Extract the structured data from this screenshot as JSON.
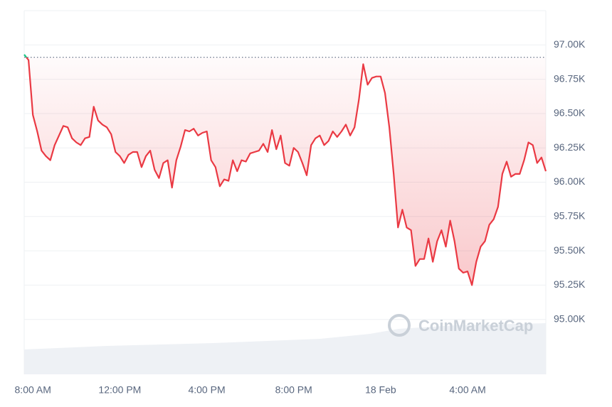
{
  "chart_data": {
    "type": "line",
    "x": [
      -0.4,
      -0.2,
      0,
      0.2,
      0.4,
      0.6,
      0.8,
      1,
      1.2,
      1.4,
      1.6,
      1.8,
      2,
      2.2,
      2.4,
      2.6,
      2.8,
      3,
      3.2,
      3.4,
      3.6,
      3.8,
      4,
      4.2,
      4.4,
      4.6,
      4.8,
      5,
      5.2,
      5.4,
      5.6,
      5.8,
      6,
      6.2,
      6.4,
      6.6,
      6.8,
      7,
      7.2,
      7.4,
      7.6,
      7.8,
      8,
      8.2,
      8.4,
      8.6,
      8.8,
      9,
      9.2,
      9.4,
      9.6,
      9.8,
      10,
      10.2,
      10.4,
      10.6,
      10.8,
      11,
      11.2,
      11.4,
      11.6,
      11.8,
      12,
      12.2,
      12.4,
      12.6,
      12.8,
      13,
      13.2,
      13.4,
      13.6,
      13.8,
      14,
      14.2,
      14.4,
      14.6,
      14.8,
      15,
      15.2,
      15.4,
      15.6,
      15.8,
      16,
      16.2,
      16.4,
      16.6,
      16.8,
      17,
      17.2,
      17.4,
      17.6,
      17.8,
      18,
      18.2,
      18.4,
      18.6,
      18.8,
      19,
      19.2,
      19.4,
      19.6,
      19.8,
      20,
      20.2,
      20.4,
      20.6,
      20.8,
      21,
      21.2,
      21.4,
      21.6,
      21.8,
      22,
      22.2,
      22.4,
      22.6,
      22.8,
      23,
      23.2,
      23.4,
      23.6
    ],
    "series": [
      {
        "color": "#ea3943",
        "up_color": "#16c784",
        "values": [
          96930,
          96890,
          96490,
          96370,
          96230,
          96190,
          96160,
          96270,
          96340,
          96410,
          96400,
          96320,
          96290,
          96270,
          96320,
          96330,
          96550,
          96450,
          96420,
          96400,
          96350,
          96220,
          96190,
          96140,
          96200,
          96220,
          96220,
          96110,
          96190,
          96230,
          96090,
          96030,
          96140,
          96160,
          95960,
          96160,
          96260,
          96380,
          96370,
          96390,
          96340,
          96360,
          96370,
          96160,
          96110,
          95970,
          96020,
          96010,
          96160,
          96080,
          96160,
          96150,
          96210,
          96220,
          96230,
          96280,
          96220,
          96380,
          96240,
          96340,
          96140,
          96120,
          96250,
          96220,
          96140,
          96050,
          96270,
          96320,
          96340,
          96270,
          96300,
          96370,
          96330,
          96370,
          96420,
          96340,
          96400,
          96600,
          96860,
          96710,
          96760,
          96770,
          96770,
          96650,
          96400,
          96060,
          95670,
          95800,
          95670,
          95650,
          95390,
          95440,
          95440,
          95590,
          95420,
          95570,
          95650,
          95530,
          95720,
          95570,
          95370,
          95340,
          95350,
          95250,
          95420,
          95530,
          95570,
          95690,
          95730,
          95820,
          96060,
          96150,
          96040,
          96060,
          96060,
          96160,
          96290,
          96270,
          96140,
          96180,
          96080
        ]
      }
    ],
    "baseline": 96910,
    "xlim": [
      -0.4,
      23.6
    ],
    "xticks": [
      {
        "value": 0,
        "label": "8:00 AM"
      },
      {
        "value": 4,
        "label": "12:00 PM"
      },
      {
        "value": 8,
        "label": "4:00 PM"
      },
      {
        "value": 12,
        "label": "8:00 PM"
      },
      {
        "value": 16,
        "label": "18 Feb"
      },
      {
        "value": 20,
        "label": "4:00 AM"
      }
    ],
    "ylim": [
      94600,
      97250
    ],
    "yticks": [
      {
        "value": 95000,
        "label": "95.00K"
      },
      {
        "value": 95250,
        "label": "95.25K"
      },
      {
        "value": 95500,
        "label": "95.50K"
      },
      {
        "value": 95750,
        "label": "95.75K"
      },
      {
        "value": 96000,
        "label": "96.00K"
      },
      {
        "value": 96250,
        "label": "96.25K"
      },
      {
        "value": 96500,
        "label": "96.50K"
      },
      {
        "value": 96750,
        "label": "96.75K"
      },
      {
        "value": 97000,
        "label": "97.00K"
      }
    ],
    "grid": true,
    "watermark": "CoinMarketCap"
  }
}
